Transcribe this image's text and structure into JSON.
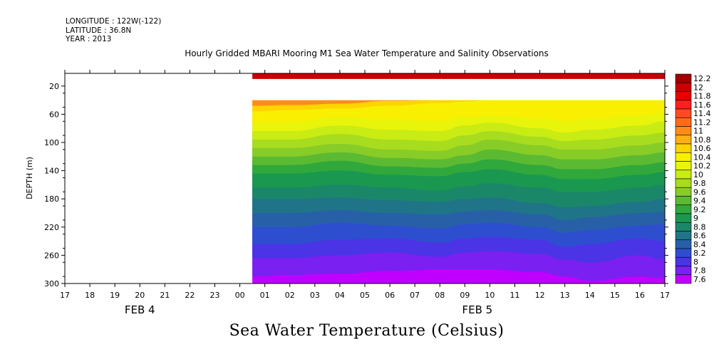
{
  "header": {
    "longitude": "LONGITUDE : 122W(-122)",
    "latitude": "LATITUDE : 36.8N",
    "year": "YEAR : 2013"
  },
  "chart_data": {
    "type": "heatmap",
    "title": "Hourly Gridded MBARI Mooring M1 Sea Water Temperature and Salinity Observations",
    "subtitle": "Sea Water Temperature (Celsius)",
    "ylabel": "DEPTH (m)",
    "xlabel": "",
    "y_inverted": true,
    "ylim": [
      300,
      2
    ],
    "y_ticks": [
      20,
      60,
      100,
      140,
      180,
      220,
      260,
      300
    ],
    "x_ticks": [
      "17",
      "18",
      "19",
      "20",
      "21",
      "22",
      "23",
      "00",
      "01",
      "02",
      "03",
      "04",
      "05",
      "06",
      "07",
      "08",
      "09",
      "10",
      "11",
      "12",
      "13",
      "14",
      "15",
      "16",
      "17"
    ],
    "date_labels": [
      {
        "text": "FEB  4",
        "at_hour": 20.0
      },
      {
        "text": "FEB  5",
        "at_hour": 33.5
      }
    ],
    "grid": false,
    "legend": "colorbar-right",
    "colorbar": {
      "levels": [
        "12.2",
        "12",
        "11.8",
        "11.6",
        "11.4",
        "11.2",
        "11",
        "10.8",
        "10.6",
        "10.4",
        "10.2",
        "10",
        "9.8",
        "9.6",
        "9.4",
        "9.2",
        "9",
        "8.8",
        "8.6",
        "8.4",
        "8.2",
        "8",
        "7.8",
        "7.6"
      ],
      "colors": [
        "#a00000",
        "#c80000",
        "#e60000",
        "#ff1f1f",
        "#ff4a22",
        "#ff6a1a",
        "#ff8c1a",
        "#ffb014",
        "#ffd400",
        "#f8f000",
        "#e8f40a",
        "#c8ec14",
        "#a8dc1e",
        "#88cc28",
        "#5cba32",
        "#30a83c",
        "#1a9850",
        "#1a8868",
        "#207488",
        "#2860a8",
        "#2e4ed0",
        "#4a34e6",
        "#7a20f0",
        "#c000ff"
      ]
    },
    "data_start_hour": 24.5,
    "data_end_hour": 41,
    "surface_band": {
      "depth_top": 2,
      "depth_bottom": 10,
      "value": 11.9
    },
    "missing_band": {
      "depth_top": 10,
      "depth_bottom": 40
    },
    "profile_hours": [
      24.5,
      26,
      28,
      30,
      32,
      33,
      34,
      36,
      37,
      38,
      40,
      41
    ],
    "isotherms": [
      {
        "level": 11.0,
        "depths": [
          48,
          47,
          45,
          41,
          40,
          40,
          40,
          40,
          40,
          40,
          40,
          40
        ]
      },
      {
        "level": 10.6,
        "depths": [
          56,
          54,
          52,
          48,
          44,
          42,
          40,
          40,
          40,
          40,
          40,
          40
        ]
      },
      {
        "level": 10.4,
        "depths": [
          72,
          72,
          64,
          68,
          70,
          64,
          62,
          66,
          70,
          66,
          62,
          58
        ]
      },
      {
        "level": 10.2,
        "depths": [
          84,
          84,
          76,
          82,
          84,
          76,
          72,
          80,
          86,
          82,
          76,
          70
        ]
      },
      {
        "level": 10.0,
        "depths": [
          96,
          96,
          88,
          96,
          98,
          90,
          84,
          92,
          98,
          96,
          90,
          86
        ]
      },
      {
        "level": 9.8,
        "depths": [
          108,
          108,
          102,
          110,
          112,
          104,
          96,
          104,
          110,
          110,
          104,
          100
        ]
      },
      {
        "level": 9.6,
        "depths": [
          120,
          120,
          114,
          122,
          124,
          118,
          110,
          118,
          124,
          124,
          118,
          114
        ]
      },
      {
        "level": 9.4,
        "depths": [
          132,
          132,
          126,
          134,
          136,
          130,
          124,
          132,
          138,
          138,
          132,
          128
        ]
      },
      {
        "level": 9.2,
        "depths": [
          144,
          144,
          140,
          146,
          148,
          142,
          138,
          146,
          152,
          152,
          146,
          142
        ]
      },
      {
        "level": 9.0,
        "depths": [
          164,
          164,
          160,
          164,
          168,
          162,
          158,
          164,
          170,
          170,
          164,
          160
        ]
      },
      {
        "level": 8.8,
        "depths": [
          180,
          180,
          178,
          182,
          184,
          180,
          178,
          186,
          192,
          190,
          184,
          180
        ]
      },
      {
        "level": 8.6,
        "depths": [
          200,
          200,
          196,
          200,
          202,
          198,
          196,
          202,
          210,
          206,
          200,
          198
        ]
      },
      {
        "level": 8.4,
        "depths": [
          220,
          220,
          214,
          218,
          222,
          216,
          214,
          220,
          228,
          224,
          218,
          216
        ]
      },
      {
        "level": 8.2,
        "depths": [
          244,
          244,
          238,
          236,
          242,
          236,
          234,
          238,
          248,
          244,
          236,
          240
        ]
      },
      {
        "level": 8.0,
        "depths": [
          264,
          264,
          260,
          256,
          262,
          256,
          254,
          258,
          266,
          270,
          260,
          266
        ]
      },
      {
        "level": 7.8,
        "depths": [
          290,
          288,
          286,
          282,
          280,
          280,
          280,
          284,
          290,
          296,
          290,
          292
        ]
      }
    ]
  }
}
